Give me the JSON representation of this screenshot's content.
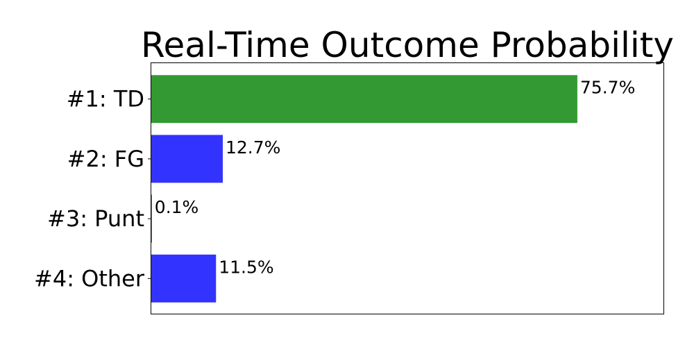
{
  "chart_data": {
    "type": "bar",
    "orientation": "horizontal",
    "title": "Real-Time Outcome Probability",
    "xlabel": "",
    "ylabel": "",
    "categories": [
      "#1: TD",
      "#2: FG",
      "#3: Punt",
      "#4: Other"
    ],
    "values": [
      75.7,
      12.7,
      0.1,
      11.5
    ],
    "value_labels": [
      "75.7%",
      "12.7%",
      "0.1%",
      "11.5%"
    ],
    "bar_colors": [
      "#339933",
      "#3333ff",
      "#3333ff",
      "#3333ff"
    ],
    "xlim": [
      0,
      91
    ],
    "grid": false,
    "legend": "none",
    "x_ticks_visible": false
  }
}
